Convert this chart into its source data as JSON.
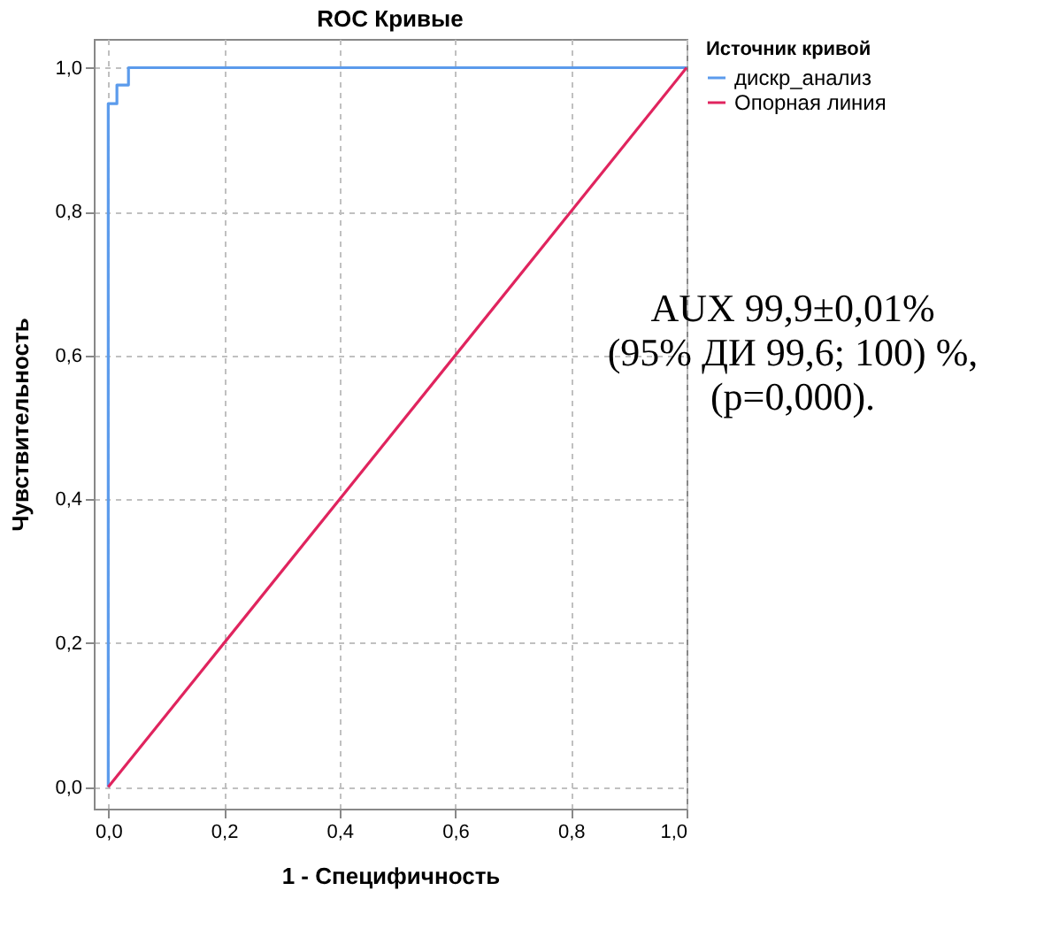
{
  "chart_data": {
    "type": "line",
    "title": "ROC Кривые",
    "xlabel": "1 - Специфичность",
    "ylabel": "Чувствительность",
    "legend_title": "Источник кривой",
    "series": [
      {
        "name": "дискр_анализ",
        "color": "#5b9bec",
        "x": [
          0,
          0,
          0.015,
          0.015,
          0.035,
          0.035,
          1
        ],
        "values": [
          0,
          0.95,
          0.95,
          0.976,
          0.976,
          1,
          1
        ]
      },
      {
        "name": "Опорная линия",
        "color": "#e0245e",
        "x": [
          0,
          1
        ],
        "values": [
          0,
          1
        ]
      }
    ],
    "xlim": [
      -0.025,
      1.0
    ],
    "ylim": [
      -0.03,
      1.04
    ],
    "xticks": [
      {
        "value": 0,
        "label": "0,0"
      },
      {
        "value": 0.2,
        "label": "0,2"
      },
      {
        "value": 0.4,
        "label": "0,4"
      },
      {
        "value": 0.6,
        "label": "0,6"
      },
      {
        "value": 0.8,
        "label": "0,8"
      },
      {
        "value": 1,
        "label": "1,0"
      }
    ],
    "yticks": [
      {
        "value": 0,
        "label": "0,0"
      },
      {
        "value": 0.2,
        "label": "0,2"
      },
      {
        "value": 0.4,
        "label": "0,4"
      },
      {
        "value": 0.6,
        "label": "0,6"
      },
      {
        "value": 0.8,
        "label": "0,8"
      },
      {
        "value": 1,
        "label": "1,0"
      }
    ],
    "grid": true,
    "legend": "top right",
    "marker": "none",
    "line_style": "solid",
    "annotations": [
      "AUX 99,9±0,01%",
      "(95% ДИ 99,6; 100) %,",
      "(p=0,000)."
    ]
  }
}
